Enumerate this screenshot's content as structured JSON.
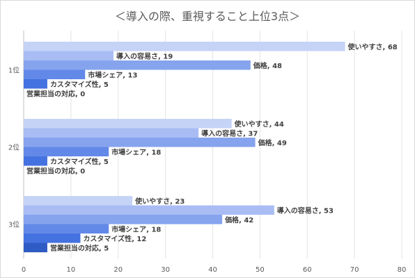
{
  "chart_data": {
    "type": "bar",
    "orientation": "horizontal",
    "title": "＜導入の際、重視すること上位3点＞",
    "categories": [
      "1位",
      "2位",
      "3位"
    ],
    "series": [
      {
        "name": "使いやすさ",
        "values": [
          68,
          44,
          23
        ],
        "color": "#c5d3f7"
      },
      {
        "name": "導入の容易さ",
        "values": [
          19,
          37,
          53
        ],
        "color": "#a9bdf4"
      },
      {
        "name": "価格",
        "values": [
          48,
          49,
          42
        ],
        "color": "#86a3ee"
      },
      {
        "name": "市場シェア",
        "values": [
          13,
          18,
          18
        ],
        "color": "#6389e8"
      },
      {
        "name": "カスタマイズ性",
        "values": [
          5,
          5,
          12
        ],
        "color": "#4472e0"
      },
      {
        "name": "営業担当の対応",
        "values": [
          0,
          0,
          5
        ],
        "color": "#2f5bc4"
      }
    ],
    "xlim": [
      0,
      80
    ],
    "xticks": [
      0,
      10,
      20,
      30,
      40,
      50,
      60,
      70,
      80
    ],
    "grid": true,
    "legend": "none"
  }
}
